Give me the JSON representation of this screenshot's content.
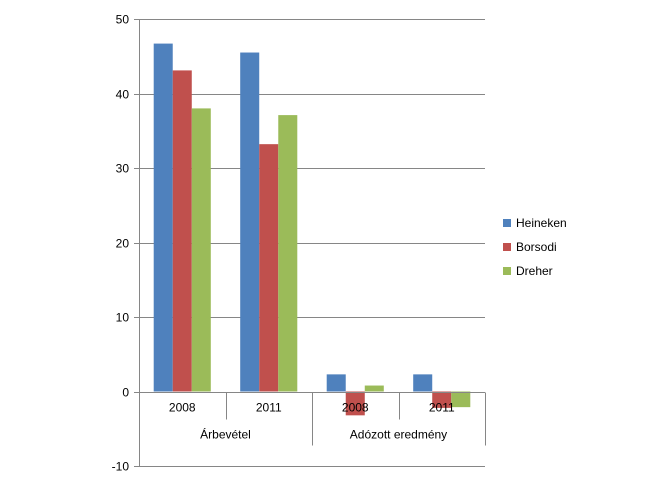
{
  "chart_data": {
    "type": "bar",
    "group_labels": [
      "Árbevétel",
      "Adózott eredmény"
    ],
    "categories": [
      "2008",
      "2011",
      "2008",
      "2011"
    ],
    "series": [
      {
        "name": "Heineken",
        "color": "#4F81BD",
        "values": [
          46.7,
          45.5,
          2.3,
          2.3
        ]
      },
      {
        "name": "Borsodi",
        "color": "#C0504D",
        "values": [
          43.1,
          33.2,
          -3.2,
          -2.2
        ]
      },
      {
        "name": "Dreher",
        "color": "#9BBB59",
        "values": [
          38.0,
          37.1,
          0.8,
          -2.1
        ]
      }
    ],
    "ylim": [
      -10,
      50
    ],
    "yticks": [
      -10,
      0,
      10,
      20,
      30,
      40,
      50
    ],
    "grid": true,
    "legend_position": "right"
  }
}
